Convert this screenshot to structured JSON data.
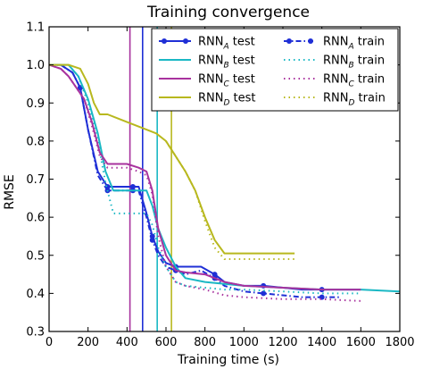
{
  "chart_data": {
    "type": "line",
    "title": "Training convergence",
    "xlabel": "Training time (s)",
    "ylabel": "RMSE",
    "xlim": [
      0,
      1800
    ],
    "ylim": [
      0.3,
      1.1
    ],
    "xticks": [
      0,
      200,
      400,
      600,
      800,
      1000,
      1200,
      1400,
      1600,
      1800
    ],
    "yticks": [
      0.3,
      0.4,
      0.5,
      0.6,
      0.7,
      0.8,
      0.9,
      1.0,
      1.1
    ],
    "grid": false,
    "legend_position": "top-right",
    "colors": {
      "A": "#1f2fd6",
      "B": "#1ab8c4",
      "C": "#a8329e",
      "D": "#b8b81e"
    },
    "vertical_lines": [
      {
        "series": "C",
        "x": 415
      },
      {
        "series": "A",
        "x": 480
      },
      {
        "series": "B",
        "x": 555
      },
      {
        "series": "D",
        "x": 628
      }
    ],
    "series": [
      {
        "name": "RNN",
        "sub": "A",
        "kind": "test",
        "style": "solid-marker",
        "x": [
          0,
          60,
          120,
          160,
          200,
          250,
          300,
          350,
          400,
          430,
          460,
          500,
          530,
          560,
          600,
          650,
          700,
          780,
          850,
          900,
          1000,
          1100,
          1200,
          1300,
          1400,
          1500,
          1600
        ],
        "y": [
          1.0,
          1.0,
          0.98,
          0.94,
          0.83,
          0.72,
          0.68,
          0.68,
          0.68,
          0.68,
          0.68,
          0.61,
          0.55,
          0.51,
          0.48,
          0.47,
          0.47,
          0.47,
          0.45,
          0.43,
          0.42,
          0.42,
          0.415,
          0.41,
          0.41,
          0.41,
          0.41
        ]
      },
      {
        "name": "RNN",
        "sub": "A",
        "kind": "train",
        "style": "dash-dot-marker",
        "x": [
          0,
          60,
          120,
          160,
          200,
          250,
          300,
          350,
          400,
          430,
          460,
          500,
          530,
          560,
          600,
          650,
          700,
          780,
          850,
          900,
          1000,
          1100,
          1200,
          1300,
          1400,
          1500
        ],
        "y": [
          1.0,
          1.0,
          0.98,
          0.94,
          0.83,
          0.71,
          0.67,
          0.67,
          0.67,
          0.67,
          0.67,
          0.6,
          0.54,
          0.5,
          0.47,
          0.46,
          0.45,
          0.46,
          0.44,
          0.42,
          0.405,
          0.4,
          0.395,
          0.39,
          0.39,
          0.39
        ]
      },
      {
        "name": "RNN",
        "sub": "B",
        "kind": "test",
        "style": "solid",
        "x": [
          0,
          100,
          150,
          200,
          250,
          290,
          330,
          400,
          500,
          530,
          560,
          600,
          650,
          700,
          800,
          900,
          1000,
          1200,
          1400,
          1600,
          1800
        ],
        "y": [
          1.0,
          1.0,
          0.97,
          0.91,
          0.82,
          0.72,
          0.67,
          0.67,
          0.67,
          0.63,
          0.57,
          0.52,
          0.47,
          0.44,
          0.43,
          0.425,
          0.42,
          0.415,
          0.41,
          0.41,
          0.405
        ]
      },
      {
        "name": "RNN",
        "sub": "B",
        "kind": "train",
        "style": "dotted",
        "x": [
          0,
          100,
          150,
          200,
          250,
          290,
          330,
          400,
          500,
          530,
          560,
          600,
          650,
          700,
          800,
          900,
          1000,
          1200,
          1400,
          1600
        ],
        "y": [
          1.0,
          1.0,
          0.97,
          0.9,
          0.8,
          0.69,
          0.61,
          0.61,
          0.61,
          0.58,
          0.52,
          0.47,
          0.43,
          0.42,
          0.415,
          0.41,
          0.41,
          0.405,
          0.4,
          0.4
        ]
      },
      {
        "name": "RNN",
        "sub": "C",
        "kind": "test",
        "style": "solid",
        "x": [
          0,
          60,
          100,
          140,
          180,
          220,
          260,
          300,
          400,
          460,
          500,
          530,
          560,
          600,
          650,
          700,
          800,
          900,
          1000,
          1200,
          1400,
          1600
        ],
        "y": [
          1.0,
          0.99,
          0.97,
          0.94,
          0.91,
          0.85,
          0.77,
          0.74,
          0.74,
          0.73,
          0.72,
          0.67,
          0.57,
          0.5,
          0.46,
          0.455,
          0.45,
          0.43,
          0.42,
          0.415,
          0.41,
          0.41
        ]
      },
      {
        "name": "RNN",
        "sub": "C",
        "kind": "train",
        "style": "dotted",
        "x": [
          0,
          60,
          100,
          140,
          180,
          220,
          260,
          300,
          400,
          460,
          500,
          530,
          560,
          600,
          650,
          700,
          800,
          900,
          1000,
          1200,
          1400,
          1600
        ],
        "y": [
          1.0,
          0.99,
          0.97,
          0.94,
          0.91,
          0.84,
          0.76,
          0.73,
          0.73,
          0.72,
          0.71,
          0.66,
          0.55,
          0.47,
          0.43,
          0.42,
          0.41,
          0.395,
          0.39,
          0.385,
          0.385,
          0.38
        ]
      },
      {
        "name": "RNN",
        "sub": "D",
        "kind": "test",
        "style": "solid",
        "x": [
          0,
          100,
          160,
          200,
          230,
          260,
          300,
          400,
          500,
          550,
          600,
          650,
          700,
          750,
          800,
          850,
          900,
          1000,
          1100,
          1200,
          1260
        ],
        "y": [
          1.0,
          1.0,
          0.99,
          0.95,
          0.9,
          0.87,
          0.87,
          0.85,
          0.83,
          0.82,
          0.8,
          0.76,
          0.72,
          0.67,
          0.6,
          0.54,
          0.505,
          0.505,
          0.505,
          0.505,
          0.505
        ]
      },
      {
        "name": "RNN",
        "sub": "D",
        "kind": "train",
        "style": "dotted",
        "x": [
          600,
          650,
          700,
          750,
          800,
          850,
          900,
          1000,
          1100,
          1200,
          1260
        ],
        "y": [
          0.8,
          0.76,
          0.72,
          0.67,
          0.59,
          0.52,
          0.49,
          0.49,
          0.49,
          0.49,
          0.49
        ]
      }
    ]
  }
}
